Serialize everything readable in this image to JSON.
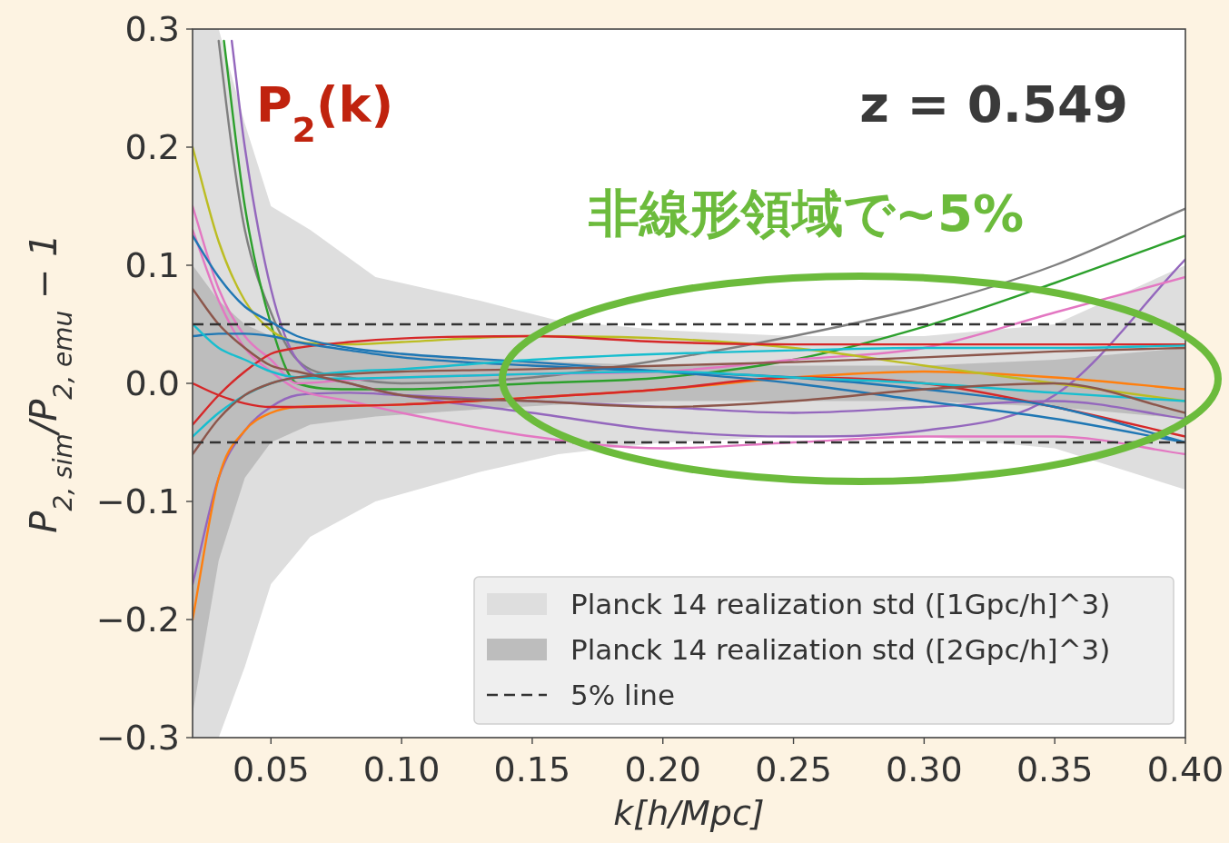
{
  "chart_data": {
    "type": "line",
    "annotations": [
      "P$_{2}$(k)",
      "z = 0.549",
      "非線形領域で~5%"
    ],
    "xlabel": "k[h/Mpc]",
    "ylabel": "P$_{2, sim}$/P$_{2, emu}$ − 1",
    "xlim": [
      0.02,
      0.4
    ],
    "ylim": [
      -0.3,
      0.3
    ],
    "xticks": [
      {
        "value": 0.05,
        "label": "0.05"
      },
      {
        "value": 0.1,
        "label": "0.10"
      },
      {
        "value": 0.15,
        "label": "0.15"
      },
      {
        "value": 0.2,
        "label": "0.20"
      },
      {
        "value": 0.25,
        "label": "0.25"
      },
      {
        "value": 0.3,
        "label": "0.30"
      },
      {
        "value": 0.35,
        "label": "0.35"
      },
      {
        "value": 0.4,
        "label": "0.40"
      }
    ],
    "yticks": [
      {
        "value": -0.3,
        "label": "−0.3"
      },
      {
        "value": -0.2,
        "label": "−0.2"
      },
      {
        "value": -0.1,
        "label": "−0.1"
      },
      {
        "value": 0,
        "label": "0.0"
      },
      {
        "value": 0.1,
        "label": "0.1"
      },
      {
        "value": 0.2,
        "label": "0.2"
      },
      {
        "value": 0.3,
        "label": "0.3"
      }
    ],
    "legend": "bottom right",
    "grid": false,
    "line_style": "solid",
    "ref_lines": [
      {
        "axis": "y",
        "value": 0.05,
        "label": "5% line",
        "color": "#333333",
        "line_style": "dashed"
      },
      {
        "axis": "y",
        "value": -0.05,
        "color": "#333333",
        "line_style": "dashed"
      }
    ],
    "series": [
      {
        "type": "area",
        "name": "Planck 14 realization std ([1Gpc/h]^3)",
        "color": "#dedede",
        "x": [
          0.02,
          0.03,
          0.04,
          0.05,
          0.065,
          0.09,
          0.13,
          0.16,
          0.2,
          0.25,
          0.3,
          0.35,
          0.4
        ],
        "values": [
          0.3,
          0.3,
          0.22,
          0.15,
          0.13,
          0.09,
          0.07,
          0.053,
          0.045,
          0.04,
          0.04,
          0.05,
          0.1
        ]
      },
      {
        "type": "area",
        "color": "#dedede",
        "x": [
          0.02,
          0.03,
          0.04,
          0.05,
          0.065,
          0.09,
          0.13,
          0.16,
          0.2,
          0.25,
          0.3,
          0.35,
          0.4
        ],
        "values": [
          -0.3,
          -0.3,
          -0.24,
          -0.17,
          -0.13,
          -0.1,
          -0.075,
          -0.06,
          -0.05,
          -0.045,
          -0.045,
          -0.055,
          -0.09
        ]
      },
      {
        "type": "area",
        "name": "Planck 14 realization std ([2Gpc/h]^3)",
        "color": "#bdbdbd",
        "x": [
          0.02,
          0.03,
          0.04,
          0.05,
          0.065,
          0.09,
          0.13,
          0.16,
          0.2,
          0.25,
          0.3,
          0.35,
          0.4
        ],
        "values": [
          0.1,
          0.07,
          0.05,
          0.04,
          0.032,
          0.026,
          0.021,
          0.018,
          0.015,
          0.015,
          0.015,
          0.02,
          0.03
        ]
      },
      {
        "type": "area",
        "color": "#bdbdbd",
        "x": [
          0.02,
          0.03,
          0.04,
          0.05,
          0.065,
          0.09,
          0.13,
          0.16,
          0.2,
          0.25,
          0.3,
          0.35,
          0.4
        ],
        "values": [
          -0.28,
          -0.15,
          -0.08,
          -0.05,
          -0.035,
          -0.028,
          -0.022,
          -0.018,
          -0.015,
          -0.015,
          -0.015,
          -0.02,
          -0.03
        ]
      },
      {
        "color": "#7f7f7f",
        "x": [
          0.03,
          0.035,
          0.04,
          0.05,
          0.06,
          0.08,
          0.1,
          0.15,
          0.2,
          0.25,
          0.3,
          0.35,
          0.4
        ],
        "values": [
          0.29,
          0.2,
          0.13,
          0.06,
          0.02,
          0.005,
          0.0,
          0.005,
          0.02,
          0.04,
          0.065,
          0.1,
          0.148
        ]
      },
      {
        "color": "#2ca02c",
        "x": [
          0.032,
          0.04,
          0.05,
          0.06,
          0.08,
          0.1,
          0.15,
          0.2,
          0.25,
          0.3,
          0.35,
          0.4
        ],
        "values": [
          0.29,
          0.15,
          0.05,
          0.0,
          -0.005,
          -0.005,
          0.0,
          0.005,
          0.02,
          0.048,
          0.085,
          0.125
        ]
      },
      {
        "color": "#9467bd",
        "x": [
          0.035,
          0.04,
          0.05,
          0.06,
          0.08,
          0.1,
          0.15,
          0.2,
          0.25,
          0.3,
          0.35,
          0.4
        ],
        "values": [
          0.29,
          0.2,
          0.08,
          0.02,
          0.0,
          -0.01,
          -0.025,
          -0.04,
          -0.045,
          -0.04,
          -0.01,
          0.105
        ]
      },
      {
        "color": "#9467bd",
        "x": [
          0.02,
          0.03,
          0.04,
          0.05,
          0.06,
          0.08,
          0.1,
          0.15,
          0.2,
          0.25,
          0.3,
          0.35,
          0.4
        ],
        "values": [
          -0.17,
          -0.08,
          -0.04,
          -0.02,
          -0.01,
          -0.008,
          -0.01,
          -0.015,
          -0.02,
          -0.025,
          -0.02,
          -0.015,
          -0.03
        ]
      },
      {
        "color": "#e377c2",
        "x": [
          0.02,
          0.03,
          0.04,
          0.05,
          0.06,
          0.08,
          0.1,
          0.15,
          0.2,
          0.25,
          0.3,
          0.35,
          0.4
        ],
        "values": [
          0.15,
          0.08,
          0.04,
          0.02,
          0.0,
          0.003,
          0.005,
          0.008,
          0.01,
          0.02,
          0.03,
          0.06,
          0.09
        ]
      },
      {
        "color": "#e377c2",
        "x": [
          0.02,
          0.03,
          0.04,
          0.05,
          0.06,
          0.08,
          0.1,
          0.15,
          0.2,
          0.25,
          0.3,
          0.35,
          0.4
        ],
        "values": [
          0.13,
          0.07,
          0.03,
          0.01,
          -0.005,
          -0.015,
          -0.025,
          -0.045,
          -0.055,
          -0.05,
          -0.045,
          -0.045,
          -0.06
        ]
      },
      {
        "color": "#ff7f0e",
        "x": [
          0.02,
          0.03,
          0.04,
          0.05,
          0.06,
          0.08,
          0.1,
          0.15,
          0.2,
          0.25,
          0.3,
          0.35,
          0.4
        ],
        "values": [
          -0.2,
          -0.08,
          -0.04,
          -0.025,
          -0.02,
          -0.019,
          -0.018,
          -0.012,
          -0.005,
          0.005,
          0.01,
          0.005,
          -0.005
        ]
      },
      {
        "color": "#bcbd22",
        "x": [
          0.02,
          0.03,
          0.04,
          0.05,
          0.06,
          0.08,
          0.1,
          0.15,
          0.2,
          0.25,
          0.3,
          0.35,
          0.4
        ],
        "values": [
          0.2,
          0.12,
          0.07,
          0.045,
          0.035,
          0.033,
          0.035,
          0.04,
          0.038,
          0.03,
          0.015,
          0.0,
          -0.015
        ]
      },
      {
        "color": "#d62728",
        "x": [
          0.02,
          0.03,
          0.04,
          0.05,
          0.06,
          0.08,
          0.1,
          0.15,
          0.2,
          0.25,
          0.3,
          0.35,
          0.4
        ],
        "values": [
          0.0,
          -0.01,
          -0.017,
          -0.02,
          -0.02,
          -0.019,
          -0.018,
          -0.012,
          -0.005,
          0.005,
          0.0,
          -0.02,
          -0.045
        ]
      },
      {
        "color": "#d62728",
        "x": [
          0.02,
          0.03,
          0.04,
          0.05,
          0.06,
          0.08,
          0.1,
          0.15,
          0.2,
          0.25,
          0.3,
          0.35,
          0.4
        ],
        "values": [
          -0.035,
          -0.01,
          0.01,
          0.025,
          0.03,
          0.035,
          0.038,
          0.04,
          0.035,
          0.033,
          0.033,
          0.033,
          0.033
        ]
      },
      {
        "color": "#1f77b4",
        "x": [
          0.02,
          0.03,
          0.04,
          0.05,
          0.06,
          0.08,
          0.1,
          0.15,
          0.2,
          0.25,
          0.3,
          0.35,
          0.4
        ],
        "values": [
          0.125,
          0.09,
          0.065,
          0.052,
          0.04,
          0.03,
          0.025,
          0.018,
          0.01,
          0.0,
          -0.015,
          -0.03,
          -0.05
        ]
      },
      {
        "color": "#1f77b4",
        "x": [
          0.02,
          0.03,
          0.04,
          0.05,
          0.06,
          0.08,
          0.1,
          0.15,
          0.2,
          0.25,
          0.3,
          0.35,
          0.4
        ],
        "values": [
          0.04,
          0.042,
          0.042,
          0.04,
          0.035,
          0.028,
          0.022,
          0.015,
          0.01,
          0.005,
          -0.005,
          -0.02,
          -0.05
        ]
      },
      {
        "color": "#17becf",
        "x": [
          0.02,
          0.03,
          0.04,
          0.05,
          0.06,
          0.08,
          0.1,
          0.15,
          0.2,
          0.25,
          0.3,
          0.35,
          0.4
        ],
        "values": [
          -0.045,
          -0.025,
          -0.01,
          0.0,
          0.005,
          0.01,
          0.012,
          0.02,
          0.025,
          0.028,
          0.03,
          0.03,
          0.032
        ]
      },
      {
        "color": "#17becf",
        "x": [
          0.02,
          0.03,
          0.04,
          0.05,
          0.06,
          0.08,
          0.1,
          0.15,
          0.2,
          0.25,
          0.3,
          0.35,
          0.4
        ],
        "values": [
          0.05,
          0.03,
          0.02,
          0.01,
          0.005,
          0.004,
          0.005,
          0.008,
          0.01,
          0.005,
          0.0,
          -0.008,
          -0.015
        ]
      },
      {
        "color": "#8c564b",
        "x": [
          0.02,
          0.03,
          0.04,
          0.05,
          0.06,
          0.08,
          0.1,
          0.15,
          0.2,
          0.25,
          0.3,
          0.35,
          0.4
        ],
        "values": [
          0.08,
          0.05,
          0.03,
          0.015,
          0.01,
          0.0,
          -0.01,
          -0.015,
          -0.02,
          -0.015,
          -0.005,
          0.0,
          -0.025
        ]
      },
      {
        "color": "#8c564b",
        "x": [
          0.02,
          0.03,
          0.04,
          0.05,
          0.06,
          0.08,
          0.1,
          0.15,
          0.2,
          0.25,
          0.3,
          0.35,
          0.4
        ],
        "values": [
          -0.06,
          -0.03,
          -0.01,
          0.0,
          0.005,
          0.008,
          0.01,
          0.012,
          0.015,
          0.018,
          0.022,
          0.027,
          0.03
        ]
      }
    ]
  }
}
